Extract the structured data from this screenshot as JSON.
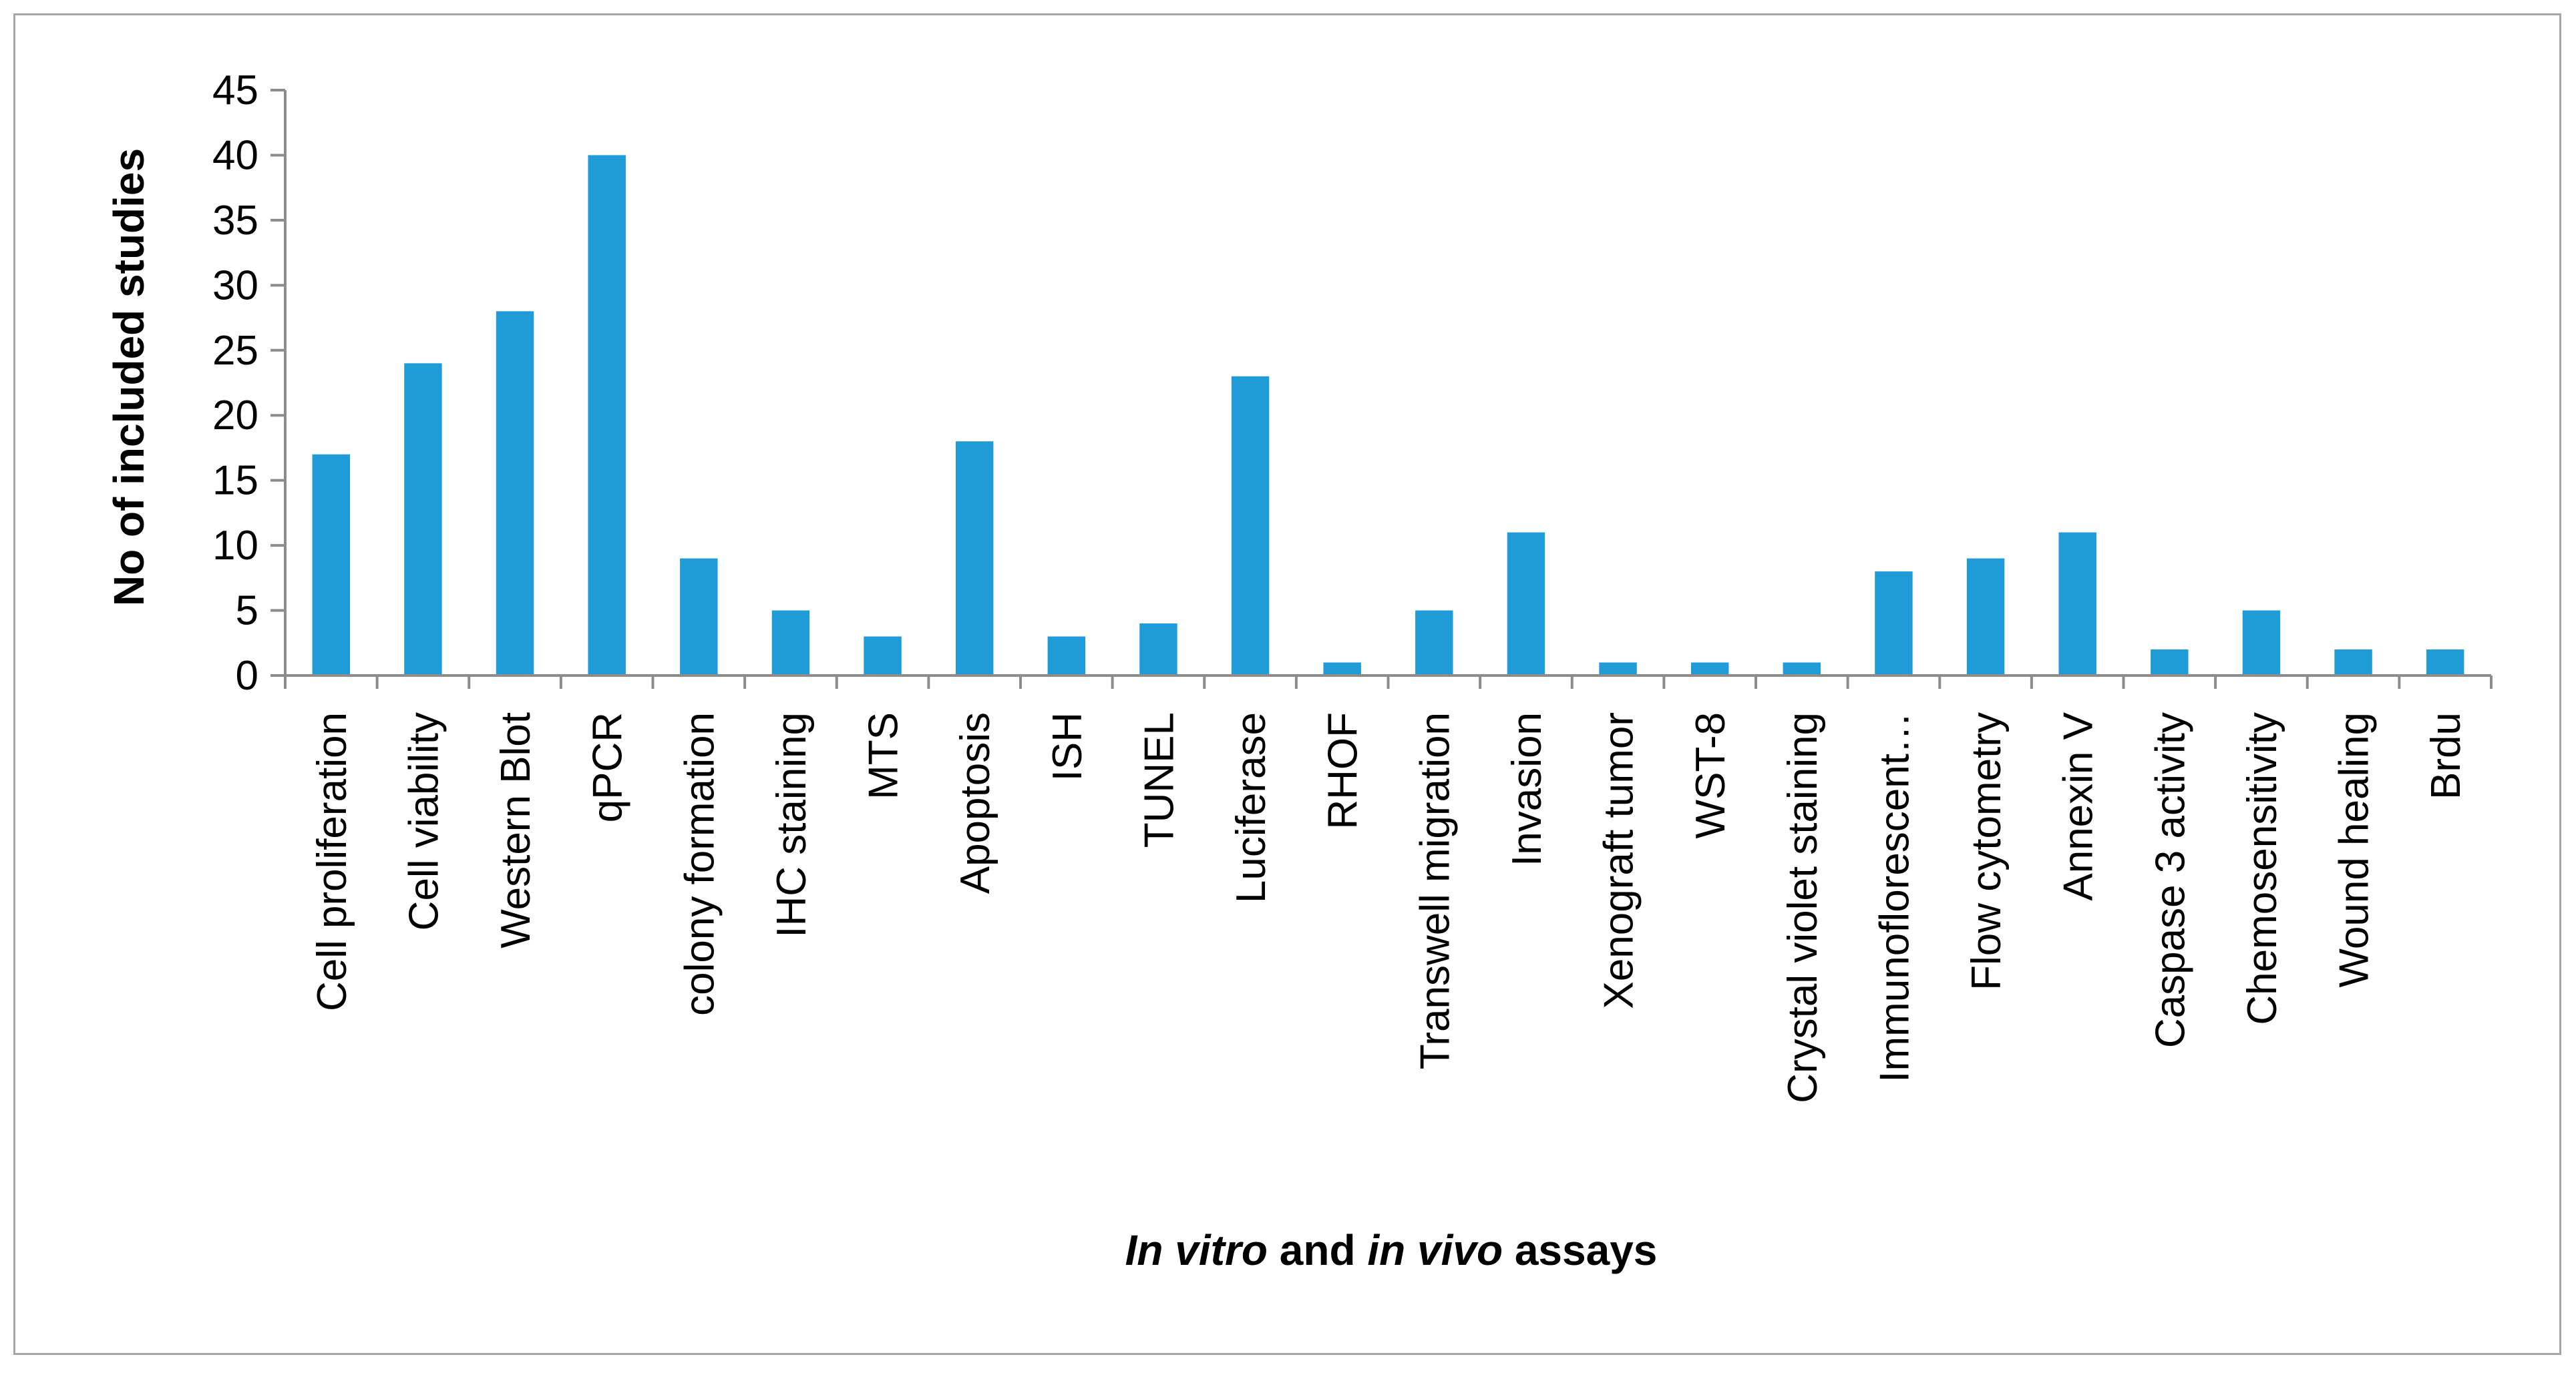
{
  "chart_data": {
    "type": "bar",
    "title": "",
    "ylabel": "No of  included studies",
    "xlabel_parts": [
      {
        "text": "In vitro",
        "italic": true
      },
      {
        "text": " and ",
        "italic": false
      },
      {
        "text": "in vivo",
        "italic": true
      },
      {
        "text": " assays",
        "italic": false
      }
    ],
    "ylim": [
      0,
      45
    ],
    "yticks": [
      0,
      5,
      10,
      15,
      20,
      25,
      30,
      35,
      40,
      45
    ],
    "grid": false,
    "legend": "none",
    "bar_color": "#1f9bd7",
    "categories": [
      "Cell proliferation",
      "Cell viability",
      "Western Blot",
      "qPCR",
      "colony formation",
      "IHC staining",
      "MTS",
      "Apoptosis",
      "ISH",
      "TUNEL",
      "Luciferase",
      "RHOF",
      "Transwell  migration",
      "Invasion",
      "Xenograft tumor",
      "WST-8",
      "Crystal violet staining",
      "Immunoflorescent…",
      "Flow cytometry",
      "Annexin V",
      "Caspase 3 activity",
      "Chemosensitivity",
      "Wound healing",
      "Brdu"
    ],
    "values": [
      17,
      24,
      28,
      40,
      9,
      5,
      3,
      18,
      3,
      4,
      23,
      1,
      5,
      11,
      1,
      1,
      1,
      8,
      9,
      11,
      2,
      5,
      2,
      2
    ]
  }
}
